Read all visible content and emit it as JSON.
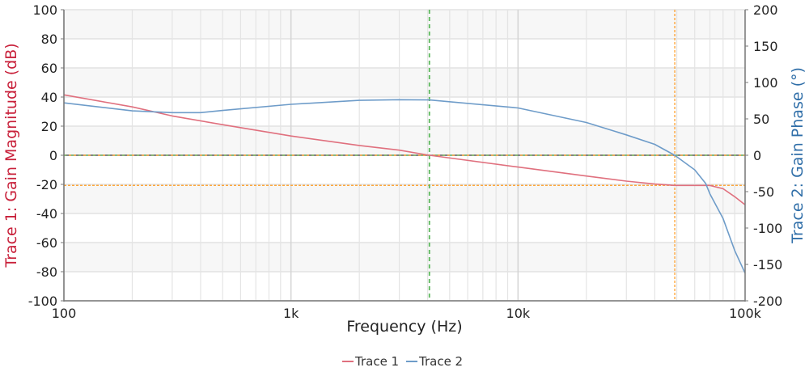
{
  "chart_data": {
    "type": "line",
    "xlabel": "Frequency (Hz)",
    "ylabel_left": "Trace 1: Gain Magnitude (dB)",
    "ylabel_right": "Trace 2: Gain Phase (°)",
    "x_scale": "log",
    "xlim": [
      100,
      100000
    ],
    "x_ticks": [
      {
        "value": 100,
        "label": "100"
      },
      {
        "value": 1000,
        "label": "1k"
      },
      {
        "value": 10000,
        "label": "10k"
      },
      {
        "value": 100000,
        "label": "100k"
      }
    ],
    "ylim_left": [
      -100,
      100
    ],
    "y_ticks_left": [
      "100",
      "80",
      "60",
      "40",
      "20",
      "0",
      "-20",
      "-40",
      "-60",
      "-80",
      "-100"
    ],
    "ylim_right": [
      -200,
      200
    ],
    "y_ticks_right": [
      "200",
      "150",
      "100",
      "50",
      "0",
      "-50",
      "-100",
      "-150",
      "-200"
    ],
    "grid": true,
    "legend_position": "bottom",
    "colors": {
      "trace1": "#e0707e",
      "trace2": "#6e9cc9",
      "left_axis_title": "#c8203a",
      "right_axis_title": "#2f6ea8",
      "marker_green": "#5cb85c",
      "marker_orange": "#ff9a1f"
    },
    "series": [
      {
        "name": "Trace 1",
        "axis": "left",
        "x": [
          100,
          200,
          300,
          500,
          1000,
          2000,
          3000,
          4070,
          10000,
          20000,
          30000,
          40000,
          49000,
          70000,
          80000,
          90000,
          100000
        ],
        "y": [
          41.5,
          33.2,
          27,
          21,
          13.2,
          6.7,
          3.5,
          0,
          -8.1,
          -14.3,
          -17.8,
          -19.8,
          -20.7,
          -20.7,
          -23,
          -28.5,
          -34
        ]
      },
      {
        "name": "Trace 2",
        "axis": "right",
        "x": [
          100,
          200,
          300,
          400,
          500,
          1000,
          2000,
          3000,
          4070,
          10000,
          20000,
          30000,
          40000,
          49000,
          60000,
          67000,
          70000,
          80000,
          90000,
          100000
        ],
        "y": [
          72,
          61,
          58.5,
          58.5,
          61.5,
          70,
          75.5,
          76.3,
          76,
          65,
          45,
          28,
          15,
          0,
          -20,
          -38.5,
          -53,
          -87,
          -131,
          -162
        ]
      }
    ],
    "markers": {
      "crossover_frequency": 4070,
      "phase_crossover_frequency": 49000,
      "gain_margin_db": -20.7,
      "zero_level": 0
    }
  }
}
